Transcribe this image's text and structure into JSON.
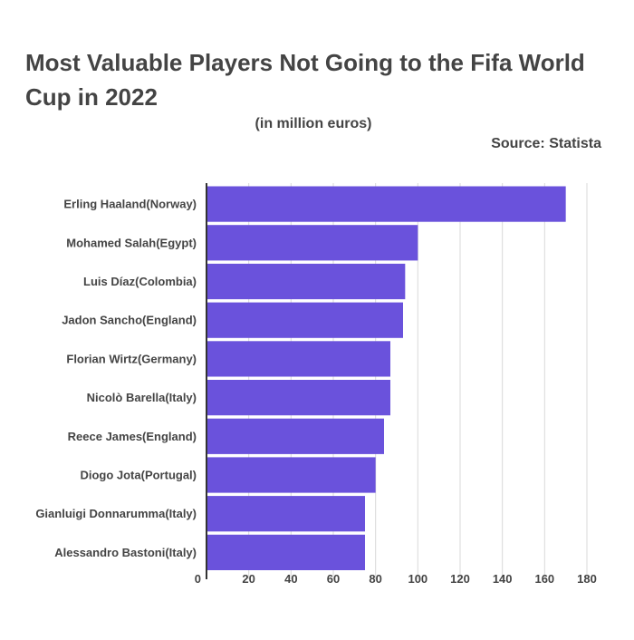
{
  "title": "Most Valuable Players Not Going to the Fifa World Cup in 2022",
  "subtitle": "(in million euros)",
  "source": "Source: Statista",
  "colors": {
    "bar": "#6a52dc",
    "grid": "#d9d9d9",
    "axis": "#333333",
    "text": "#444444"
  },
  "chart_data": {
    "type": "bar",
    "orientation": "horizontal",
    "categories": [
      "Erling Haaland(Norway)",
      "Mohamed Salah(Egypt)",
      "Luis Díaz(Colombia)",
      "Jadon Sancho(England)",
      "Florian Wirtz(Germany)",
      "Nicolò Barella(Italy)",
      "Reece James(England)",
      "Diogo Jota(Portugal)",
      "Gianluigi Donnarumma(Italy)",
      "Alessandro Bastoni(Italy)"
    ],
    "values": [
      170,
      100,
      94,
      93,
      87,
      87,
      84,
      80,
      75,
      75
    ],
    "xlim": [
      0,
      180
    ],
    "xticks": [
      "0",
      "20",
      "40",
      "60",
      "80",
      "100",
      "120",
      "140",
      "160",
      "180"
    ],
    "grid": true,
    "legend": "none"
  }
}
